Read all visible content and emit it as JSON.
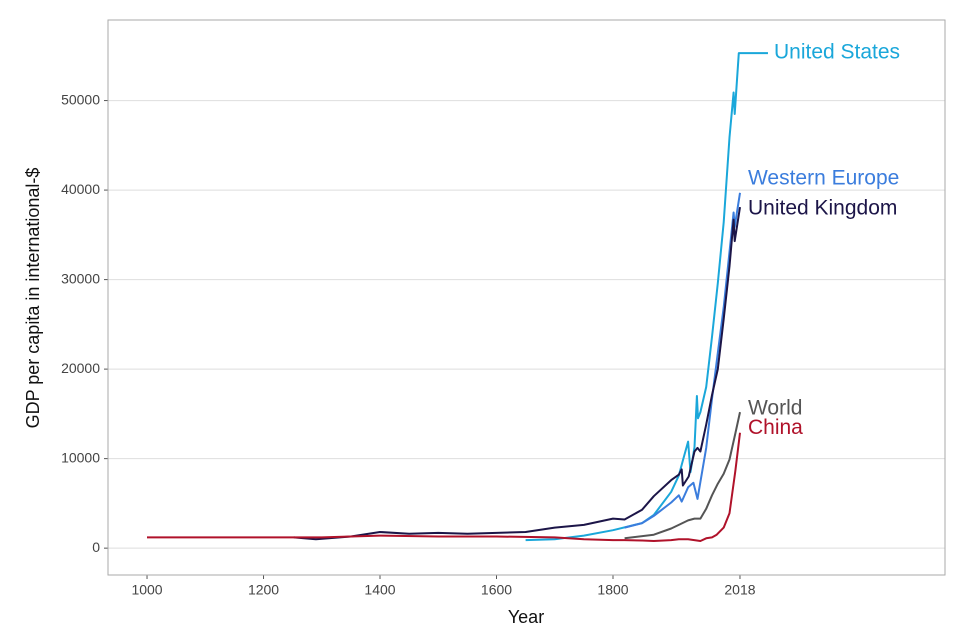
{
  "chart_data": {
    "type": "line",
    "x_label": "Year",
    "y_label": "GDP per capita in international-$",
    "xlim": [
      933,
      2370
    ],
    "ylim": [
      -3000,
      59000
    ],
    "xticks": [
      1000,
      1200,
      1400,
      1600,
      1800,
      2018
    ],
    "yticks": [
      0,
      10000,
      20000,
      30000,
      40000,
      50000
    ],
    "grid": true,
    "series": [
      {
        "name": "United States",
        "color": "#1aa7da",
        "x": [
          1650,
          1700,
          1750,
          1800,
          1850,
          1870,
          1900,
          1913,
          1920,
          1929,
          1933,
          1940,
          1944,
          1946,
          1950,
          1960,
          1970,
          1980,
          1990,
          2000,
          2007,
          2009,
          2016,
          2018
        ],
        "values": [
          900,
          1000,
          1400,
          2000,
          2800,
          3700,
          6300,
          8100,
          9800,
          11900,
          8500,
          11300,
          17000,
          14500,
          15200,
          18000,
          23600,
          29600,
          36400,
          45900,
          50900,
          48500,
          55300,
          55300
        ]
      },
      {
        "name": "Western Europe",
        "color": "#3b7ddd",
        "x": [
          1820,
          1850,
          1870,
          1900,
          1913,
          1918,
          1929,
          1938,
          1945,
          1950,
          1960,
          1970,
          1980,
          1990,
          2000,
          2007,
          2009,
          2018
        ],
        "values": [
          2300,
          2800,
          3600,
          5100,
          5900,
          5200,
          6800,
          7300,
          5500,
          7400,
          11200,
          16700,
          21800,
          26900,
          33100,
          37500,
          35900,
          39700
        ]
      },
      {
        "name": "United Kingdom",
        "color": "#1c1548",
        "x": [
          1252,
          1290,
          1350,
          1400,
          1450,
          1500,
          1550,
          1600,
          1650,
          1700,
          1750,
          1800,
          1820,
          1850,
          1870,
          1900,
          1913,
          1918,
          1920,
          1930,
          1940,
          1945,
          1950,
          1960,
          1970,
          1980,
          1990,
          2000,
          2007,
          2009,
          2018
        ],
        "values": [
          1200,
          1000,
          1300,
          1800,
          1600,
          1700,
          1600,
          1700,
          1800,
          2300,
          2600,
          3300,
          3200,
          4300,
          5800,
          7600,
          8200,
          8800,
          7000,
          8000,
          10800,
          11200,
          10800,
          13800,
          17100,
          20000,
          25600,
          31500,
          36700,
          34300,
          38100
        ]
      },
      {
        "name": "World",
        "color": "#555555",
        "x": [
          1820,
          1870,
          1900,
          1913,
          1929,
          1940,
          1950,
          1960,
          1970,
          1980,
          1990,
          2000,
          2010,
          2018
        ],
        "values": [
          1100,
          1500,
          2200,
          2600,
          3100,
          3300,
          3300,
          4400,
          5900,
          7200,
          8300,
          9900,
          12800,
          15200
        ]
      },
      {
        "name": "China",
        "color": "#b0122a",
        "x": [
          1000,
          1100,
          1200,
          1300,
          1400,
          1500,
          1600,
          1700,
          1750,
          1800,
          1820,
          1850,
          1870,
          1900,
          1913,
          1929,
          1950,
          1960,
          1970,
          1978,
          1990,
          2000,
          2010,
          2018
        ],
        "values": [
          1200,
          1200,
          1200,
          1200,
          1400,
          1300,
          1300,
          1200,
          1000,
          900,
          900,
          850,
          800,
          900,
          1000,
          1000,
          800,
          1100,
          1200,
          1500,
          2300,
          3900,
          8600,
          12900
        ]
      }
    ]
  }
}
